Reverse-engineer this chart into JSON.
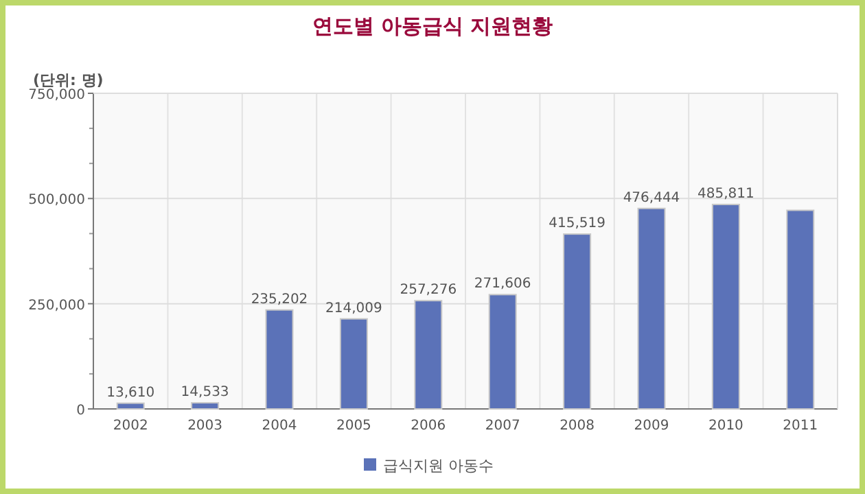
{
  "chart_data": {
    "type": "bar",
    "title": "연도별 아동급식 지원현황",
    "ylabel": "(단위: 명)",
    "categories": [
      "2002",
      "2003",
      "2004",
      "2005",
      "2006",
      "2007",
      "2008",
      "2009",
      "2010",
      "2011"
    ],
    "series": [
      {
        "name": "급식지원 아동수",
        "color": "#5b72b8",
        "values": [
          13610,
          14533,
          235202,
          214009,
          257276,
          271606,
          415519,
          476444,
          485811,
          472000
        ],
        "value_labels": [
          "13,610",
          "14,533",
          "235,202",
          "214,009",
          "257,276",
          "271,606",
          "415,519",
          "476,444",
          "485,811",
          null
        ]
      }
    ],
    "ylim": [
      0,
      750000
    ],
    "yticks": [
      {
        "value": 0,
        "label": "0"
      },
      {
        "value": 250000,
        "label": "250,000"
      },
      {
        "value": 500000,
        "label": "500,000"
      },
      {
        "value": 750000,
        "label": "750,000"
      }
    ],
    "grid": true,
    "legend": "bottom"
  }
}
